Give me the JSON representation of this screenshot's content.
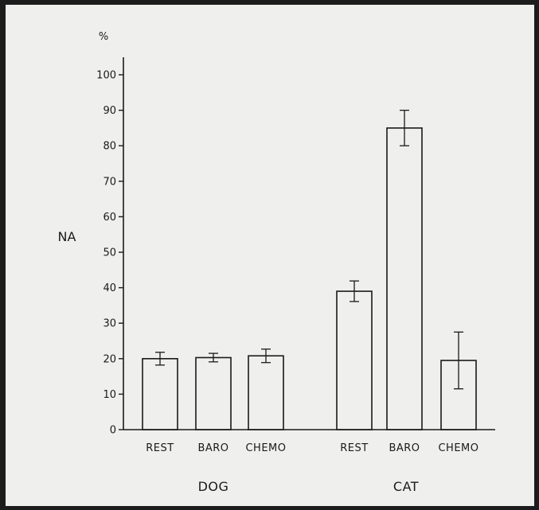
{
  "chart_data": {
    "type": "bar",
    "ylabel": "NA",
    "y_unit": "%",
    "ylim": [
      0,
      100
    ],
    "yticks": [
      0,
      10,
      20,
      30,
      40,
      50,
      60,
      70,
      80,
      90,
      100
    ],
    "grid": false,
    "groups": [
      {
        "name": "DOG",
        "bars": [
          {
            "category": "REST",
            "value": 20,
            "error": 1.8
          },
          {
            "category": "BARO",
            "value": 20.3,
            "error": 1.2
          },
          {
            "category": "CHEMO",
            "value": 20.8,
            "error": 1.9
          }
        ]
      },
      {
        "name": "CAT",
        "bars": [
          {
            "category": "REST",
            "value": 39,
            "error": 2.9
          },
          {
            "category": "BARO",
            "value": 85,
            "error": 5
          },
          {
            "category": "CHEMO",
            "value": 19.5,
            "error": 8
          }
        ]
      }
    ]
  }
}
